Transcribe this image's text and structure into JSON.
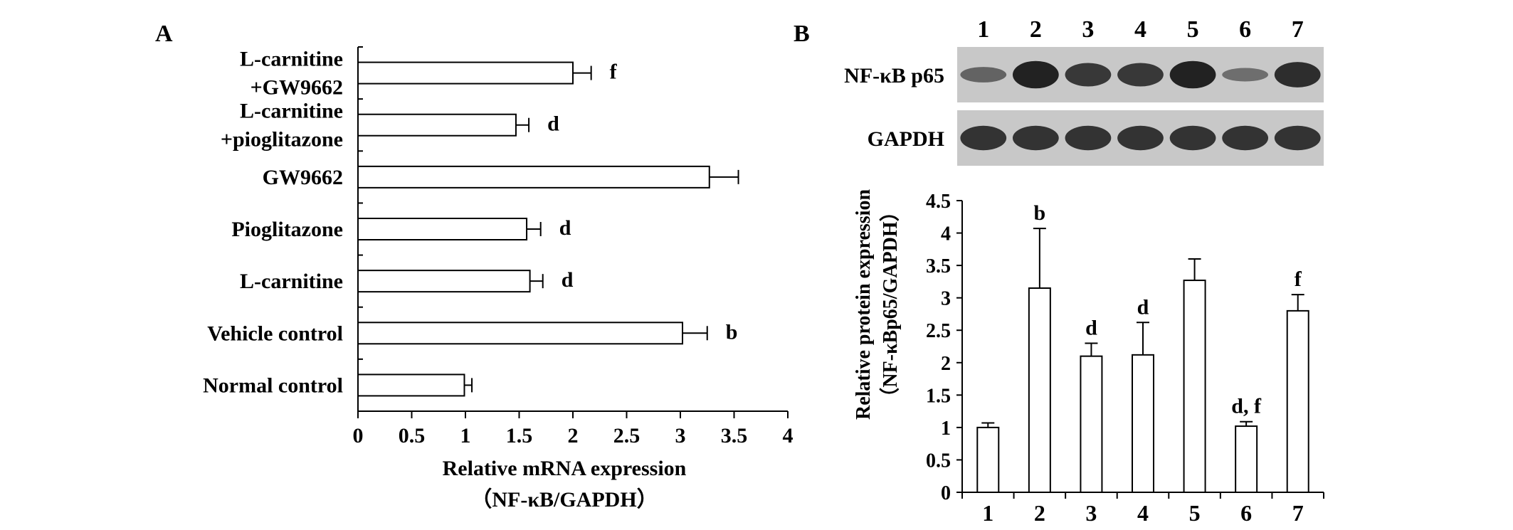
{
  "panel_a_label": "A",
  "panel_b_label": "B",
  "blot": {
    "lane_labels": [
      "1",
      "2",
      "3",
      "4",
      "5",
      "6",
      "7"
    ],
    "row_labels": [
      "NF-κB p65",
      "GAPDH"
    ],
    "p65_intensity": [
      0.35,
      0.95,
      0.75,
      0.75,
      0.95,
      0.25,
      0.85
    ],
    "gapdh_intensity": [
      0.8,
      0.8,
      0.8,
      0.8,
      0.8,
      0.8,
      0.8
    ],
    "colors": {
      "background": "#c8c8c8",
      "band": "#141414"
    }
  },
  "chart_data": [
    {
      "type": "bar",
      "orientation": "horizontal",
      "categories": [
        [
          "L-carnitine",
          "+GW9662"
        ],
        [
          "L-carnitine",
          "+pioglitazone"
        ],
        [
          "GW9662"
        ],
        [
          "Pioglitazone"
        ],
        [
          "L-carnitine"
        ],
        [
          "Vehicle control"
        ],
        [
          "Normal control"
        ]
      ],
      "values": [
        2.0,
        1.47,
        3.27,
        1.57,
        1.6,
        3.02,
        0.99
      ],
      "errors": [
        0.17,
        0.12,
        0.27,
        0.13,
        0.12,
        0.23,
        0.07
      ],
      "annotations": [
        "f",
        "d",
        "",
        "d",
        "d",
        "b",
        ""
      ],
      "xlim": [
        0,
        4
      ],
      "xticks": [
        "0",
        "0.5",
        "1",
        "1.5",
        "2",
        "2.5",
        "3",
        "3.5",
        "4"
      ],
      "xlabel": "Relative mRNA expression",
      "xlabel2": "（NF-κB/GAPDH）",
      "ylabel": "",
      "title": "",
      "grid": false,
      "bar_fill": "#ffffff",
      "bar_stroke": "#000000"
    },
    {
      "type": "bar",
      "orientation": "vertical",
      "categories": [
        "1",
        "2",
        "3",
        "4",
        "5",
        "6",
        "7"
      ],
      "values": [
        1.0,
        3.15,
        2.1,
        2.12,
        3.27,
        1.02,
        2.8
      ],
      "errors": [
        0.07,
        0.92,
        0.2,
        0.5,
        0.33,
        0.07,
        0.25
      ],
      "annotations": [
        "",
        "b",
        "d",
        "d",
        "",
        "d, f",
        "f"
      ],
      "ylim": [
        0,
        4.5
      ],
      "yticks": [
        "0",
        "0.5",
        "1",
        "1.5",
        "2",
        "2.5",
        "3",
        "3.5",
        "4",
        "4.5"
      ],
      "ylabel": "Relative protein expression",
      "ylabel2": "（NF-κBp65/GAPDH）",
      "xlabel": "",
      "title": "",
      "grid": false,
      "bar_fill": "#ffffff",
      "bar_stroke": "#000000"
    }
  ]
}
